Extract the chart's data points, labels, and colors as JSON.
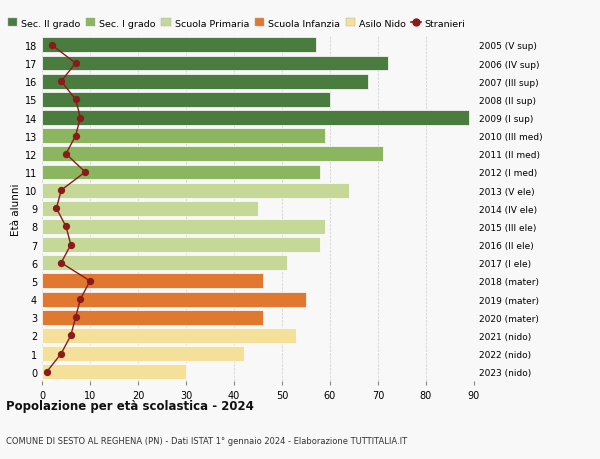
{
  "ages": [
    0,
    1,
    2,
    3,
    4,
    5,
    6,
    7,
    8,
    9,
    10,
    11,
    12,
    13,
    14,
    15,
    16,
    17,
    18
  ],
  "bar_values": [
    30,
    42,
    53,
    46,
    55,
    46,
    51,
    58,
    59,
    45,
    64,
    58,
    71,
    59,
    89,
    60,
    68,
    72,
    57
  ],
  "stranieri": [
    1,
    4,
    6,
    7,
    8,
    10,
    4,
    6,
    5,
    3,
    4,
    9,
    5,
    7,
    8,
    7,
    4,
    7,
    2
  ],
  "right_labels": [
    "2023 (nido)",
    "2022 (nido)",
    "2021 (nido)",
    "2020 (mater)",
    "2019 (mater)",
    "2018 (mater)",
    "2017 (I ele)",
    "2016 (II ele)",
    "2015 (III ele)",
    "2014 (IV ele)",
    "2013 (V ele)",
    "2012 (I med)",
    "2011 (II med)",
    "2010 (III med)",
    "2009 (I sup)",
    "2008 (II sup)",
    "2007 (III sup)",
    "2006 (IV sup)",
    "2005 (V sup)"
  ],
  "bar_colors": [
    "#f5e09a",
    "#f5e09a",
    "#f5e09a",
    "#e07830",
    "#e07830",
    "#e07830",
    "#c5d898",
    "#c5d898",
    "#c5d898",
    "#c5d898",
    "#c5d898",
    "#8cb560",
    "#8cb560",
    "#8cb560",
    "#4a7c40",
    "#4a7c40",
    "#4a7c40",
    "#4a7c40",
    "#4a7c40"
  ],
  "legend_labels": [
    "Sec. II grado",
    "Sec. I grado",
    "Scuola Primaria",
    "Scuola Infanzia",
    "Asilo Nido",
    "Stranieri"
  ],
  "legend_colors": [
    "#4a7c40",
    "#8cb560",
    "#c5d898",
    "#e07830",
    "#f5e09a",
    "#8b1a1a"
  ],
  "title": "Popolazione per età scolastica - 2024",
  "subtitle": "COMUNE DI SESTO AL REGHENA (PN) - Dati ISTAT 1° gennaio 2024 - Elaborazione TUTTITALIA.IT",
  "ylabel": "Età alunni",
  "xlim_max": 90,
  "background_color": "#f8f8f8",
  "grid_color": "#cccccc"
}
